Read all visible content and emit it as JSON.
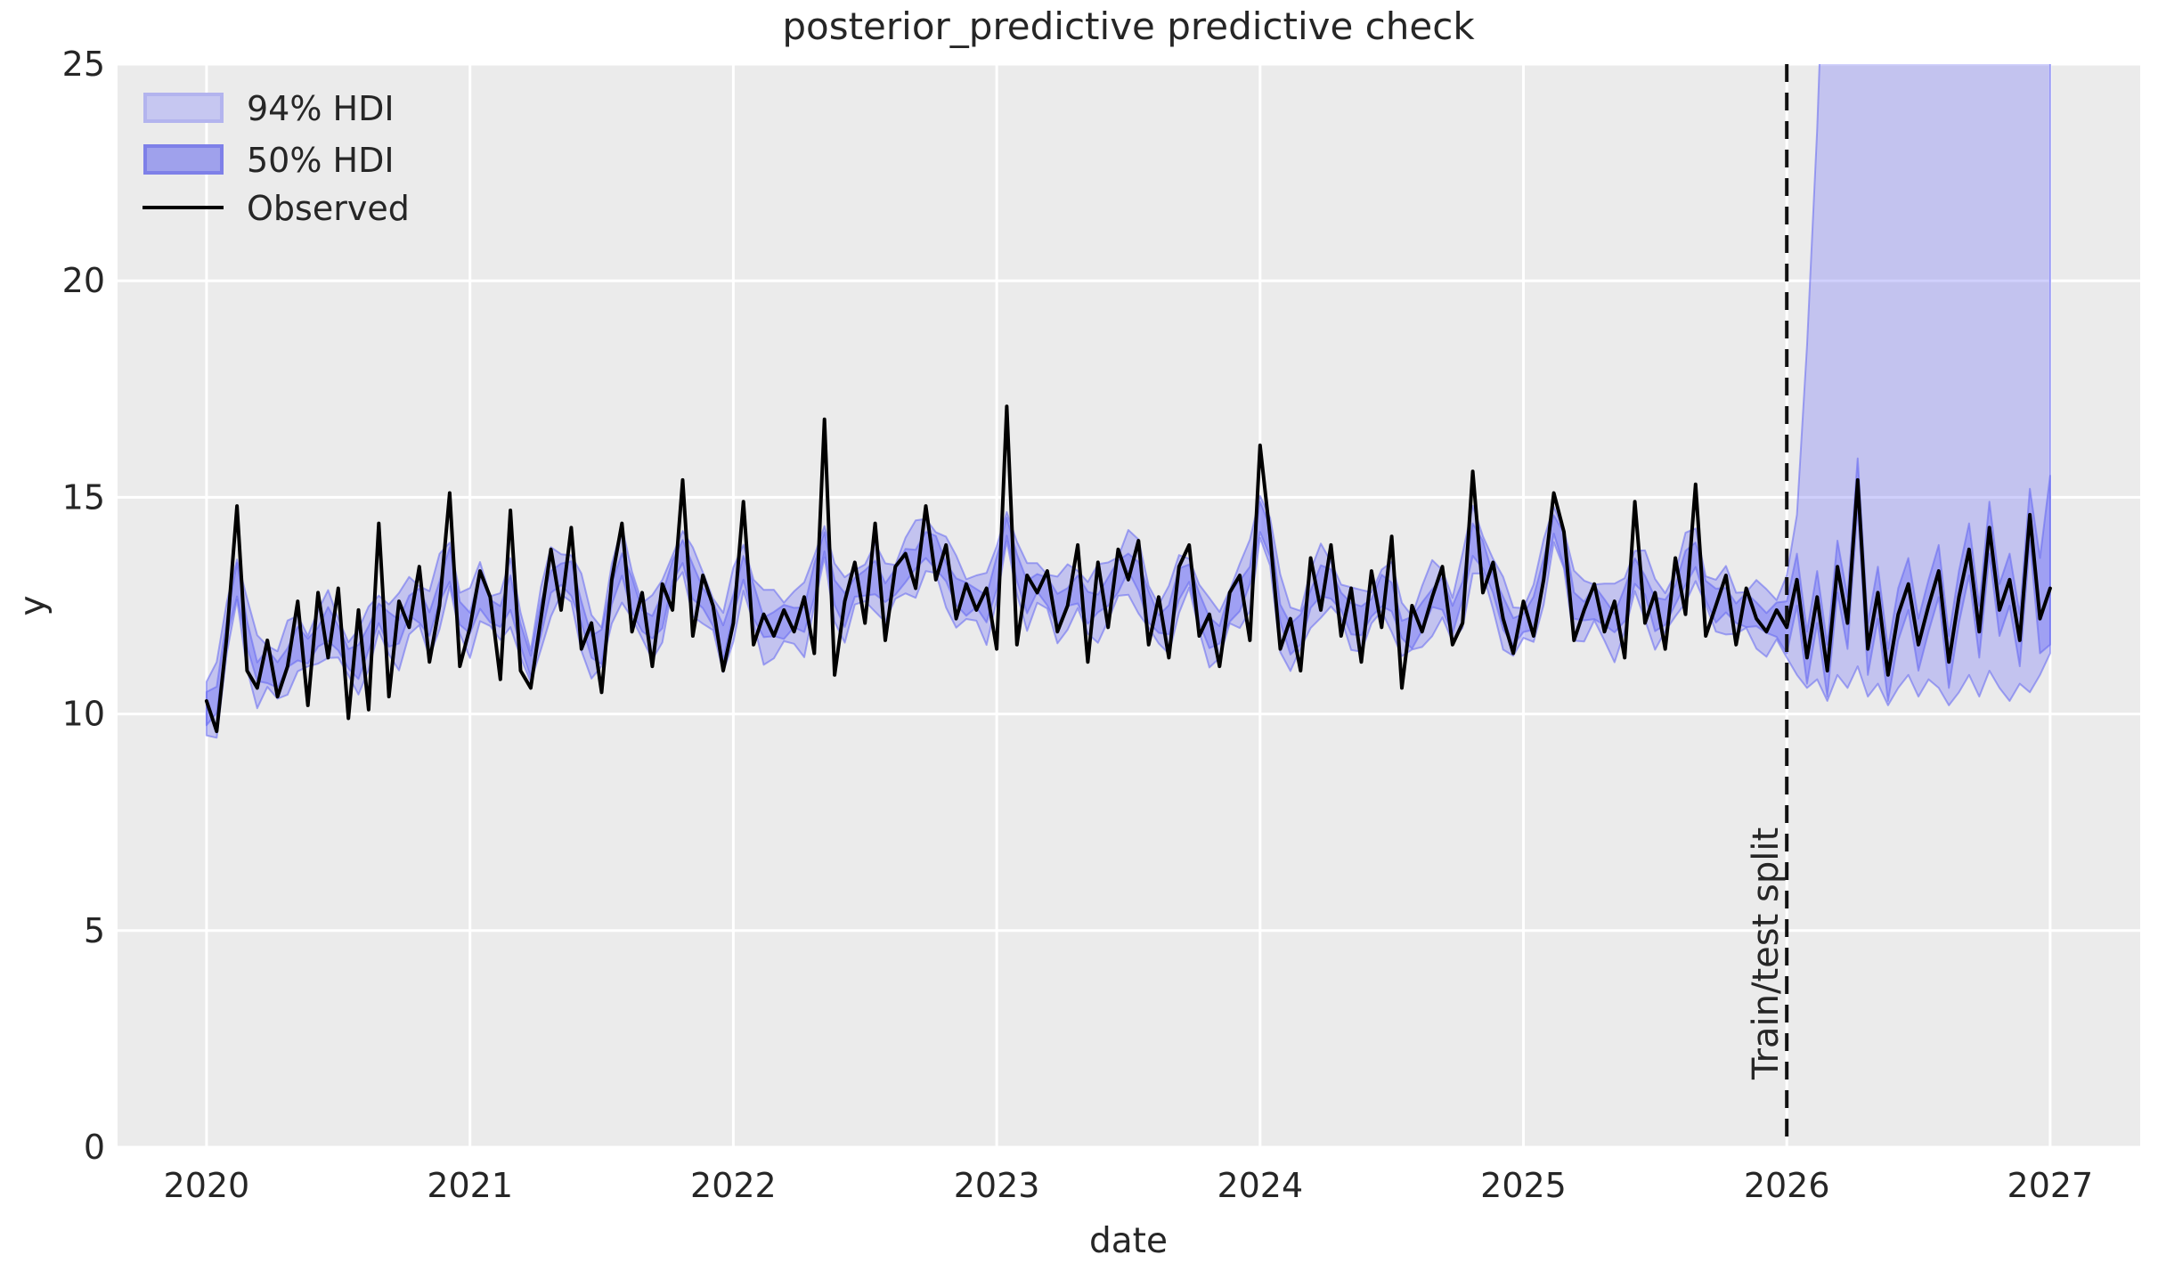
{
  "title": "posterior_predictive predictive check",
  "axes": {
    "xlabel": "date",
    "ylabel": "y",
    "x_ticks": [
      2020,
      2021,
      2022,
      2023,
      2024,
      2025,
      2026,
      2027
    ],
    "y_ticks": [
      0,
      5,
      10,
      15,
      20,
      25
    ]
  },
  "legend": {
    "items": [
      {
        "label": "94% HDI",
        "type": "patch"
      },
      {
        "label": "50% HDI",
        "type": "patch"
      },
      {
        "label": "Observed",
        "type": "line"
      }
    ]
  },
  "annotations": {
    "split_label": "Train/test split",
    "split_x": 2026.0
  },
  "style": {
    "plot_bg": "#ebebeb",
    "grid_color": "#ffffff",
    "text_color": "#262626",
    "observed_color": "#000000",
    "band_fill_94": "rgba(124,126,248,0.36)",
    "band_fill_50": "rgba(124,126,248,0.50)",
    "band_edge": "rgba(98,102,240,0.55)",
    "legend_94_fill": "#c6c7f1",
    "legend_94_edge": "#b3b4ee",
    "legend_50_fill": "#9fa1ec",
    "legend_50_edge": "#7e80e8",
    "split_line_color": "#111111"
  },
  "chart_data": {
    "type": "line",
    "title": "posterior_predictive predictive check",
    "xlabel": "date",
    "ylabel": "y",
    "xlim": [
      2019.662,
      2027.342
    ],
    "ylim": [
      0,
      25
    ],
    "grid": true,
    "legend_position": "upper left",
    "x_start": 2020.0,
    "x_step_years": 0.038462,
    "test_start_index": 156,
    "series": [
      {
        "name": "Observed",
        "values": [
          10.3,
          9.6,
          11.8,
          14.8,
          11.0,
          10.6,
          11.7,
          10.4,
          11.1,
          12.6,
          10.2,
          12.8,
          11.3,
          12.9,
          9.9,
          12.4,
          10.1,
          14.4,
          10.4,
          12.6,
          12.0,
          13.4,
          11.2,
          12.5,
          15.1,
          11.1,
          12.0,
          13.3,
          12.7,
          10.8,
          14.7,
          11.0,
          10.6,
          12.2,
          13.8,
          12.4,
          14.3,
          11.5,
          12.1,
          10.5,
          13.1,
          14.4,
          11.9,
          12.8,
          11.1,
          13.0,
          12.4,
          15.4,
          11.8,
          13.2,
          12.5,
          11.0,
          12.1,
          14.9,
          11.6,
          12.3,
          11.8,
          12.4,
          11.9,
          12.7,
          11.4,
          16.8,
          10.9,
          12.6,
          13.5,
          12.1,
          14.4,
          11.7,
          13.4,
          13.7,
          12.9,
          14.8,
          13.1,
          13.9,
          12.2,
          13.0,
          12.4,
          12.9,
          11.5,
          17.1,
          11.6,
          13.2,
          12.8,
          13.3,
          11.9,
          12.5,
          13.9,
          11.2,
          13.5,
          12.0,
          13.8,
          13.1,
          14.0,
          11.6,
          12.7,
          11.3,
          13.4,
          13.9,
          11.8,
          12.3,
          11.1,
          12.8,
          13.2,
          11.7,
          16.2,
          14.1,
          11.5,
          12.2,
          11.0,
          13.6,
          12.4,
          13.9,
          11.8,
          12.9,
          11.2,
          13.3,
          12.0,
          14.1,
          10.6,
          12.5,
          11.9,
          12.7,
          13.4,
          11.6,
          12.1,
          15.6,
          12.8,
          13.5,
          12.2,
          11.4,
          12.6,
          11.8,
          13.1,
          15.1,
          14.2,
          11.7,
          12.4,
          13.0,
          11.9,
          12.6,
          11.3,
          14.9,
          12.1,
          12.8,
          11.5,
          13.6,
          12.3,
          15.3,
          11.8,
          12.5,
          13.2,
          11.6,
          12.9,
          12.2,
          11.9,
          12.4,
          12.0,
          13.1,
          11.3,
          12.7,
          11.0,
          13.4,
          12.1,
          15.4,
          11.5,
          12.8,
          10.9,
          12.3,
          13.0,
          11.6,
          12.5,
          13.3,
          11.2,
          12.7,
          13.8,
          11.9,
          14.3,
          12.4,
          13.1,
          11.7,
          14.6,
          12.2,
          12.9
        ]
      }
    ],
    "hdi_94_train_half_width": 0.62,
    "hdi_50_train_half_width": 0.3,
    "hdi_94_test": {
      "upper": [
        13.2,
        14.6,
        18.5,
        23.5,
        30,
        40,
        40,
        40,
        40,
        40,
        40,
        40,
        40,
        40,
        40,
        40,
        40,
        40,
        40,
        40,
        40,
        40,
        40,
        40,
        40,
        40,
        40
      ],
      "lower": [
        11.3,
        10.9,
        10.6,
        10.8,
        10.3,
        10.9,
        10.6,
        11.1,
        10.4,
        10.7,
        10.2,
        10.6,
        10.9,
        10.4,
        10.8,
        10.6,
        10.2,
        10.5,
        10.9,
        10.4,
        11.0,
        10.6,
        10.3,
        10.7,
        10.5,
        10.9,
        11.4
      ]
    },
    "hdi_50_test": {
      "upper": [
        12.6,
        13.7,
        11.9,
        13.3,
        11.6,
        14.0,
        12.7,
        15.9,
        12.1,
        13.4,
        11.5,
        12.9,
        13.6,
        12.2,
        13.1,
        13.9,
        11.8,
        13.3,
        14.4,
        12.5,
        14.9,
        13.0,
        13.7,
        12.3,
        15.2,
        13.6,
        15.5
      ],
      "lower": [
        11.4,
        12.5,
        10.7,
        12.1,
        10.4,
        12.8,
        11.5,
        14.8,
        10.9,
        12.2,
        10.3,
        11.7,
        12.4,
        11.0,
        11.9,
        12.7,
        10.6,
        12.1,
        13.2,
        11.3,
        13.7,
        11.8,
        12.5,
        11.1,
        14.0,
        11.4,
        11.6
      ]
    }
  }
}
